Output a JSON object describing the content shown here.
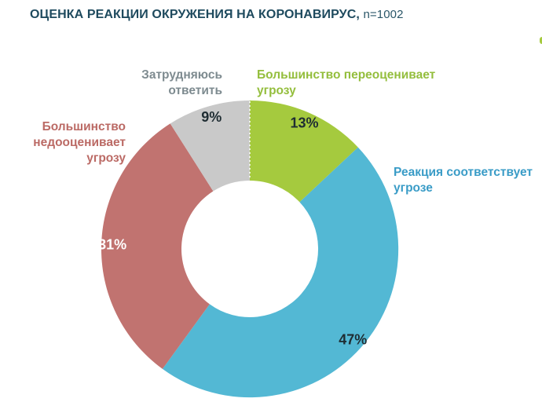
{
  "chart_data": {
    "type": "pie",
    "subtype": "donut",
    "title": "ОЦЕНКА РЕАКЦИИ ОКРУЖЕНИЯ НА КОРОНАВИРУС,",
    "sample_size_label": "n=1002",
    "hole_ratio": 0.46,
    "start_angle_deg": 0,
    "direction": "clockwise",
    "legend_position": "outside-callouts",
    "grid": false,
    "separator": {
      "position": "12-oclock",
      "style": "dotted-white"
    },
    "segments": [
      {
        "name": "Большинство переоценивает угрозу",
        "value": 13,
        "pct_label": "13%",
        "color": "#a5ca3e",
        "label_color": "#94be3d",
        "pct_text_color": "#1f2d33",
        "label_lines": [
          "Большинство переоценивает",
          "угрозу"
        ]
      },
      {
        "name": "Реакция соответствует угрозе",
        "value": 47,
        "pct_label": "47%",
        "color": "#53b8d4",
        "label_color": "#3a9cc7",
        "pct_text_color": "#1f2d33",
        "label_lines": [
          "Реакция соответствует",
          "угрозе"
        ]
      },
      {
        "name": "Большинство недооценивает угрозу",
        "value": 31,
        "pct_label": "31%",
        "color": "#c17370",
        "label_color": "#bb6a65",
        "pct_text_color": "#ffffff",
        "label_lines": [
          "Большинство",
          "недооценивает",
          "угрозу"
        ]
      },
      {
        "name": "Затрудняюсь ответить",
        "value": 9,
        "pct_label": "9%",
        "color": "#c9c9c9",
        "label_color": "#7e8b90",
        "pct_text_color": "#1f2d33",
        "label_lines": [
          "Затрудняюсь",
          "ответить"
        ]
      }
    ]
  }
}
